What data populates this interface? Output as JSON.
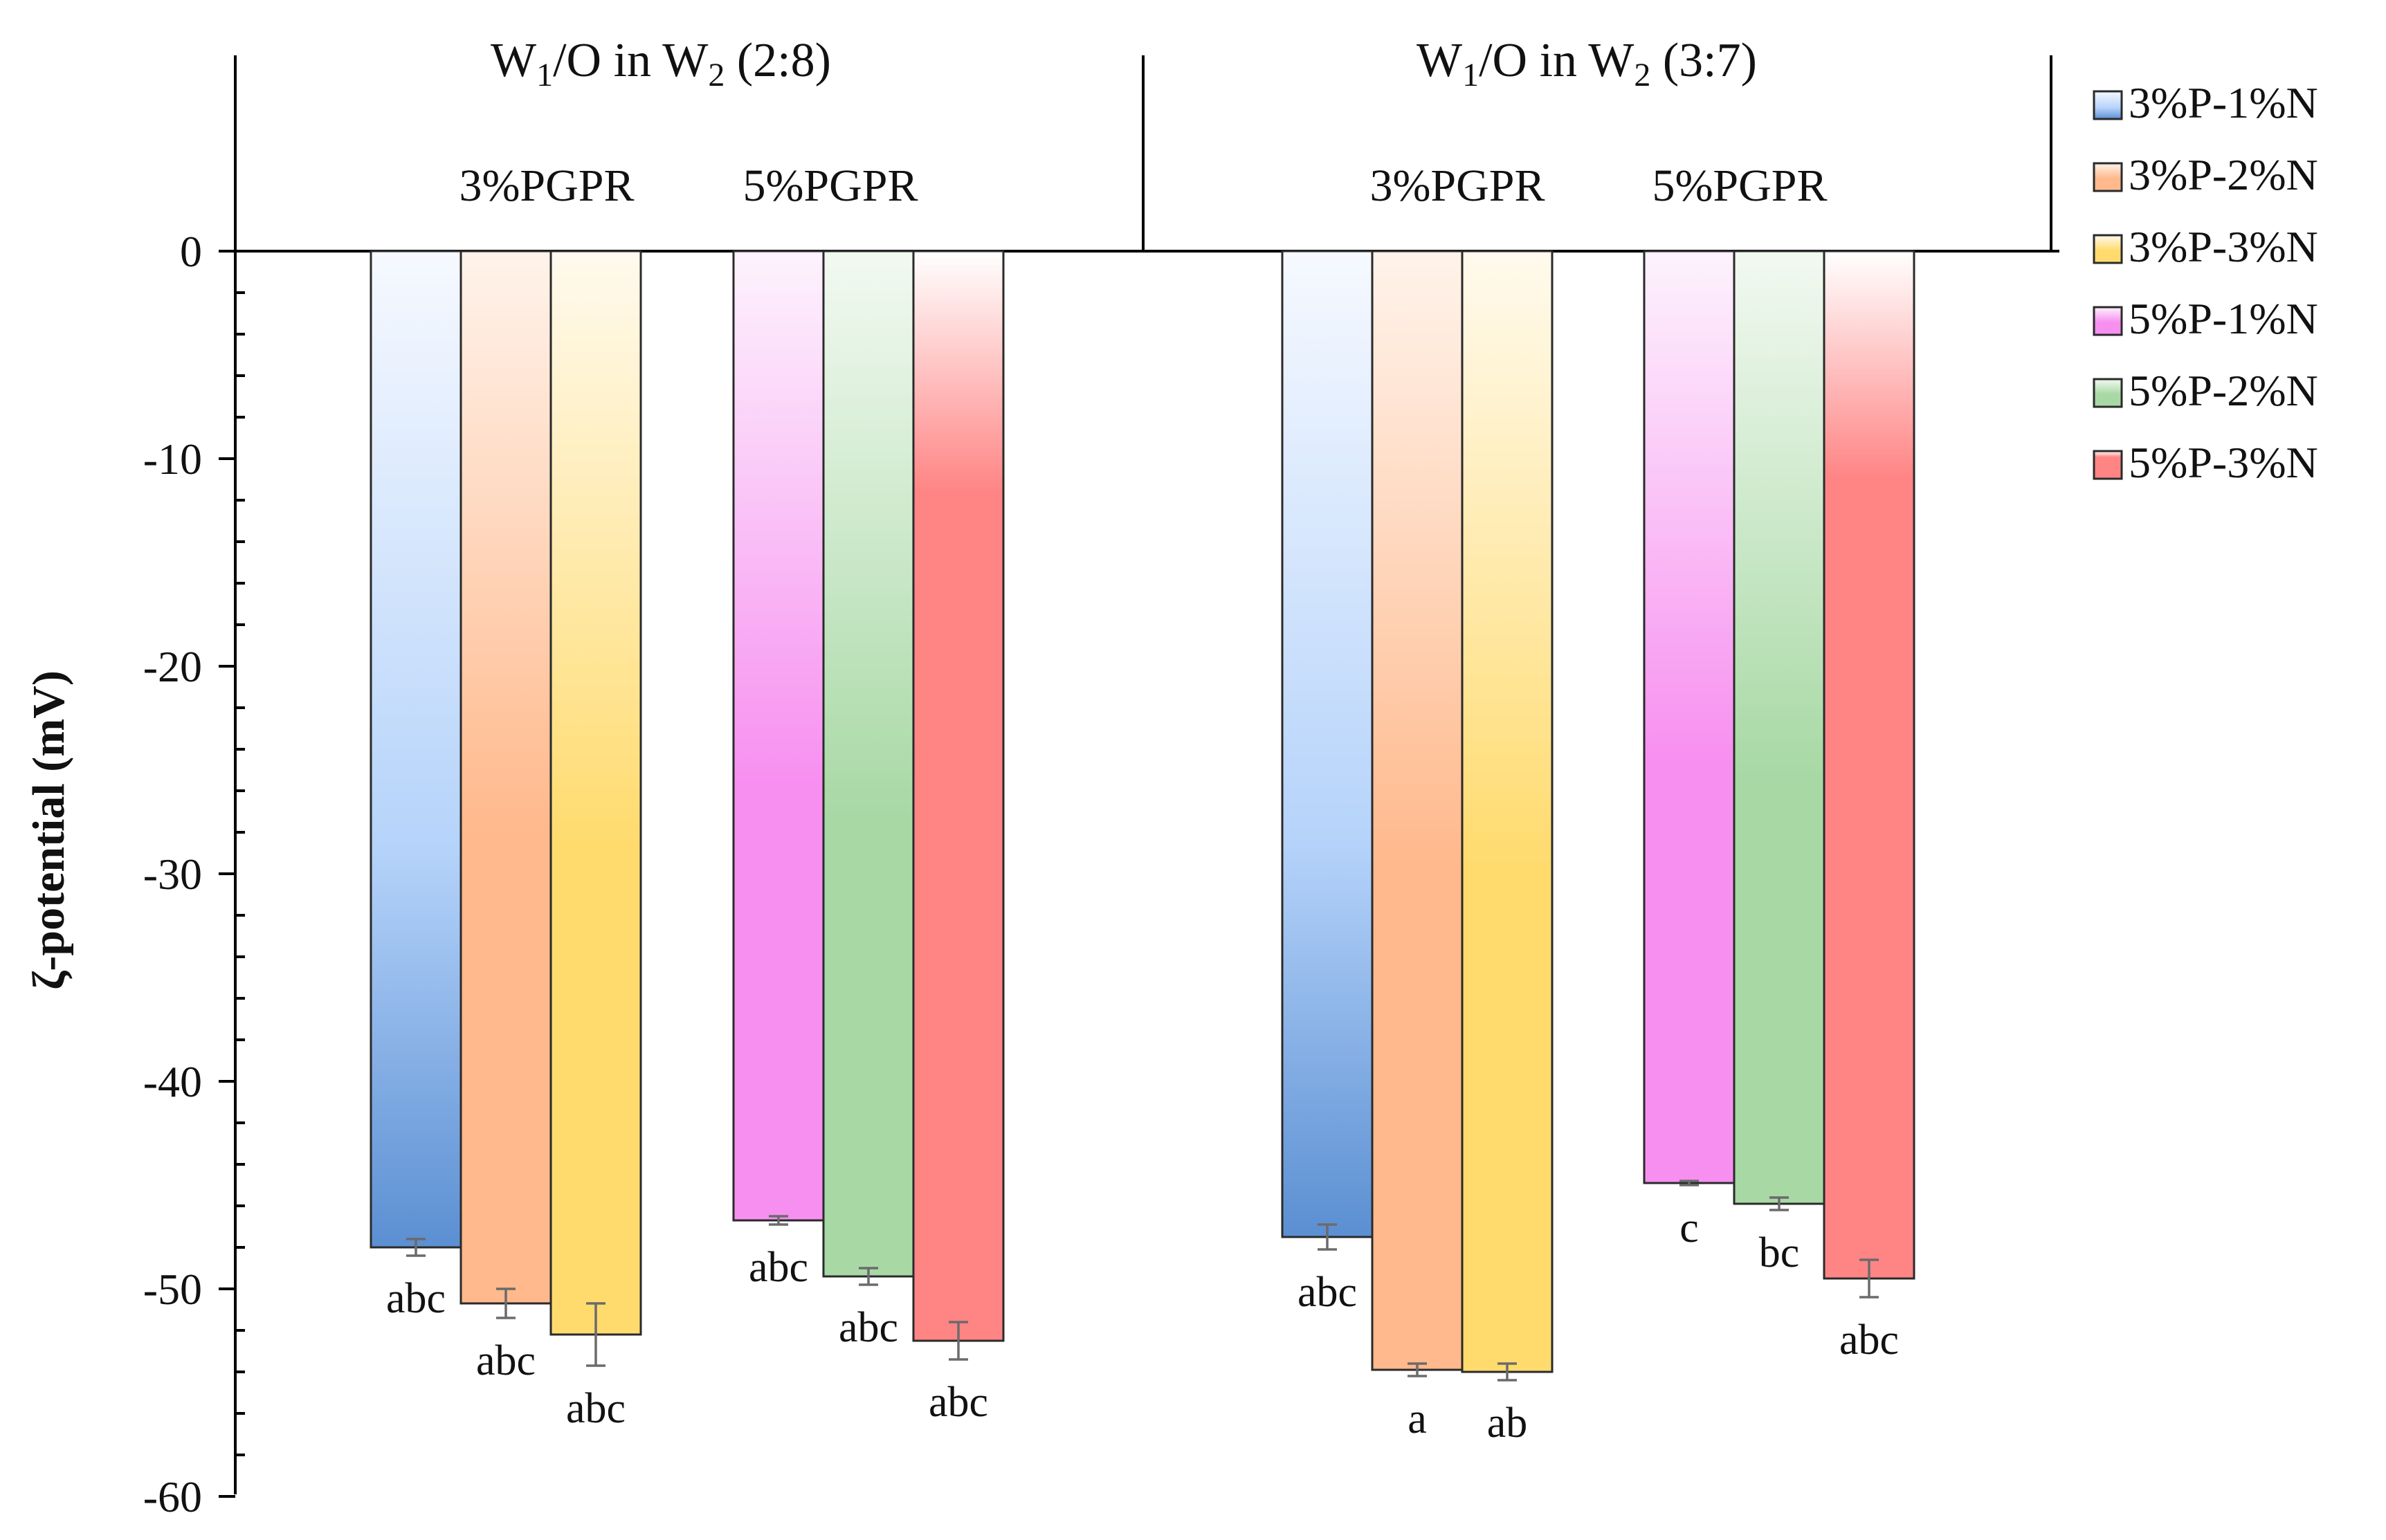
{
  "chart_data": {
    "type": "bar",
    "ylabel": "ζ-potential  (mV)",
    "ylim": [
      -60,
      0
    ],
    "yticks": [
      0,
      -10,
      -20,
      -30,
      -40,
      -50,
      -60
    ],
    "ytick_labels": [
      "0",
      "-10",
      "-20",
      "-30",
      "-40",
      "-50",
      "-60"
    ],
    "groups": [
      {
        "title_main": "W",
        "title_sub1": "1",
        "title_mid": "/O in W",
        "title_sub2": "2",
        "title_end": " (2:8)",
        "subgroups": [
          {
            "label": "3%PGPR",
            "bars": [
              {
                "series": "3%P-1%N",
                "value": -48.0,
                "error": 0.4,
                "sig": "abc"
              },
              {
                "series": "3%P-2%N",
                "value": -50.7,
                "error": 0.7,
                "sig": "abc"
              },
              {
                "series": "3%P-3%N",
                "value": -52.2,
                "error": 1.5,
                "sig": "abc"
              }
            ]
          },
          {
            "label": "5%PGPR",
            "bars": [
              {
                "series": "5%P-1%N",
                "value": -46.7,
                "error": 0.2,
                "sig": "abc"
              },
              {
                "series": "5%P-2%N",
                "value": -49.4,
                "error": 0.4,
                "sig": "abc"
              },
              {
                "series": "5%P-3%N",
                "value": -52.5,
                "error": 0.9,
                "sig": "abc"
              }
            ]
          }
        ]
      },
      {
        "title_main": "W",
        "title_sub1": "1",
        "title_mid": "/O in W",
        "title_sub2": "2",
        "title_end": " (3:7)",
        "subgroups": [
          {
            "label": "3%PGPR",
            "bars": [
              {
                "series": "3%P-1%N",
                "value": -47.5,
                "error": 0.6,
                "sig": "abc"
              },
              {
                "series": "3%P-2%N",
                "value": -53.9,
                "error": 0.3,
                "sig": "a"
              },
              {
                "series": "3%P-3%N",
                "value": -54.0,
                "error": 0.4,
                "sig": "ab"
              }
            ]
          },
          {
            "label": "5%PGPR",
            "bars": [
              {
                "series": "5%P-1%N",
                "value": -44.9,
                "error": 0.1,
                "sig": "c"
              },
              {
                "series": "5%P-2%N",
                "value": -45.9,
                "error": 0.3,
                "sig": "bc"
              },
              {
                "series": "5%P-3%N",
                "value": -49.5,
                "error": 0.9,
                "sig": "abc"
              }
            ]
          }
        ]
      }
    ],
    "legend": {
      "position": "right",
      "entries": [
        {
          "label": "3%P-1%N",
          "color": "#a9c9f5",
          "top_color": "#f6f9ff",
          "bottom_color": "#5b8fd2",
          "gradient": "blue"
        },
        {
          "label": "3%P-2%N",
          "color": "#ffc9a3",
          "top_color": "#fff3eb",
          "bottom_color": "#ffb98c",
          "gradient": "peach"
        },
        {
          "label": "3%P-3%N",
          "color": "#ffe08a",
          "top_color": "#fffaee",
          "bottom_color": "#ffdb6e",
          "gradient": "yellow"
        },
        {
          "label": "5%P-1%N",
          "color": "#f99af2",
          "top_color": "#fdf3fd",
          "bottom_color": "#f78ff0",
          "gradient": "magenta"
        },
        {
          "label": "5%P-2%N",
          "color": "#b3dfb0",
          "top_color": "#f2f9f1",
          "bottom_color": "#a8d9a5",
          "gradient": "green"
        },
        {
          "label": "5%P-3%N",
          "color": "#ff8585",
          "top_color": "#ffffff",
          "bottom_color": "#ff8585",
          "gradient": "red"
        }
      ]
    }
  }
}
